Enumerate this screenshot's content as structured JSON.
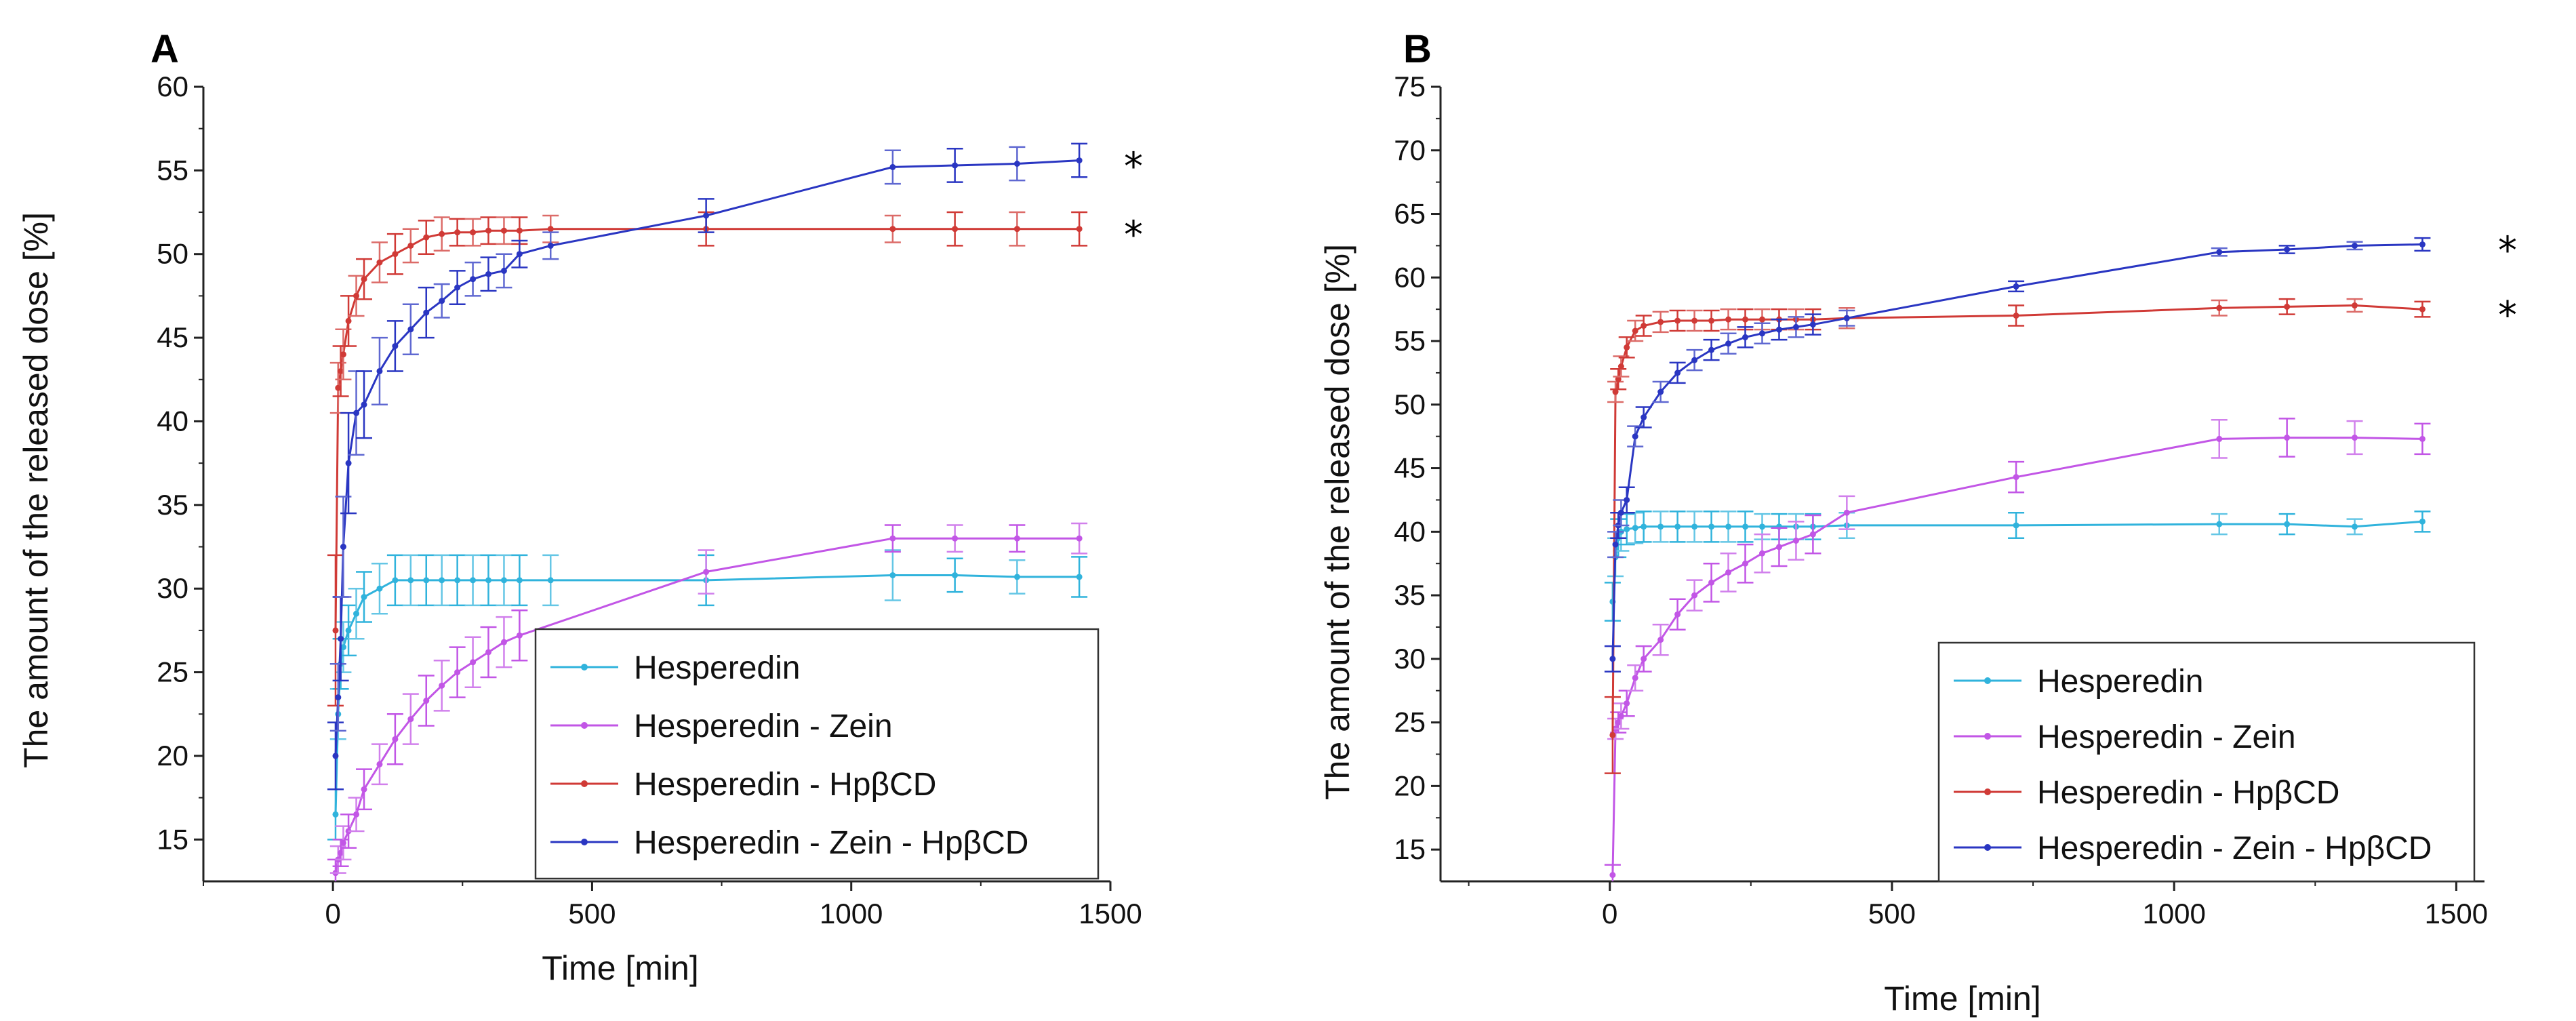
{
  "chart_data": [
    {
      "type": "line",
      "panel_label": "A",
      "xlabel": "Time [min]",
      "ylabel": "The amount of the released dose [%]",
      "xlim": [
        -250,
        1500
      ],
      "ylim": [
        12.5,
        60
      ],
      "xticks": [
        0,
        500,
        1000,
        1500
      ],
      "yticks": [
        15,
        20,
        25,
        30,
        35,
        40,
        45,
        50,
        55,
        60
      ],
      "legend_position": "bottom-right",
      "series": [
        {
          "name": "Hesperedin",
          "color": "#30b3dc",
          "x": [
            5,
            10,
            15,
            20,
            30,
            45,
            60,
            90,
            120,
            150,
            180,
            210,
            240,
            270,
            300,
            330,
            360,
            420,
            720,
            1080,
            1200,
            1320,
            1440
          ],
          "y": [
            16.5,
            22.5,
            25.5,
            26.5,
            27.5,
            28.5,
            29.5,
            30.0,
            30.5,
            30.5,
            30.5,
            30.5,
            30.5,
            30.5,
            30.5,
            30.5,
            30.5,
            30.5,
            30.5,
            30.8,
            30.8,
            30.7,
            30.7
          ],
          "err": [
            1.5,
            1.5,
            1.5,
            1.5,
            1.5,
            1.5,
            1.5,
            1.5,
            1.5,
            1.5,
            1.5,
            1.5,
            1.5,
            1.5,
            1.5,
            1.5,
            1.5,
            1.5,
            1.5,
            1.5,
            1.0,
            1.0,
            1.2
          ],
          "star": false
        },
        {
          "name": "Hesperedin - Zein",
          "color": "#c256e6",
          "x": [
            5,
            10,
            15,
            20,
            30,
            45,
            60,
            90,
            120,
            150,
            180,
            210,
            240,
            270,
            300,
            330,
            360,
            720,
            1080,
            1200,
            1320,
            1440
          ],
          "y": [
            13.0,
            13.8,
            14.2,
            14.8,
            15.5,
            16.5,
            18.0,
            19.5,
            21.0,
            22.2,
            23.3,
            24.2,
            25.0,
            25.6,
            26.2,
            26.8,
            27.2,
            31.0,
            33.0,
            33.0,
            33.0,
            33.0
          ],
          "err": [
            0.8,
            0.8,
            0.8,
            1.0,
            1.0,
            1.0,
            1.2,
            1.2,
            1.5,
            1.5,
            1.5,
            1.5,
            1.5,
            1.5,
            1.5,
            1.5,
            1.5,
            1.3,
            0.8,
            0.8,
            0.8,
            0.9
          ],
          "star": false
        },
        {
          "name": "Hesperedin - HpβCD",
          "color": "#d03a36",
          "x": [
            5,
            10,
            15,
            20,
            30,
            45,
            60,
            90,
            120,
            150,
            180,
            210,
            240,
            270,
            300,
            330,
            360,
            420,
            720,
            1080,
            1200,
            1320,
            1440
          ],
          "y": [
            27.5,
            42.0,
            43.0,
            44.0,
            46.0,
            47.5,
            48.5,
            49.5,
            50.0,
            50.5,
            51.0,
            51.2,
            51.3,
            51.3,
            51.4,
            51.4,
            51.4,
            51.5,
            51.5,
            51.5,
            51.5,
            51.5,
            51.5
          ],
          "err": [
            4.5,
            1.5,
            1.5,
            1.5,
            1.5,
            1.2,
            1.2,
            1.2,
            1.2,
            1.0,
            1.0,
            1.0,
            0.8,
            0.8,
            0.8,
            0.8,
            0.8,
            0.8,
            1.0,
            0.8,
            1.0,
            1.0,
            1.0
          ],
          "star": true
        },
        {
          "name": "Hesperedin - Zein - HpβCD",
          "color": "#2a36c2",
          "x": [
            5,
            10,
            15,
            20,
            30,
            45,
            60,
            90,
            120,
            150,
            180,
            210,
            240,
            270,
            300,
            330,
            360,
            420,
            720,
            1080,
            1200,
            1320,
            1440
          ],
          "y": [
            20.0,
            23.5,
            27.0,
            32.5,
            37.5,
            40.5,
            41.0,
            43.0,
            44.5,
            45.5,
            46.5,
            47.2,
            48.0,
            48.5,
            48.8,
            49.0,
            50.0,
            50.5,
            52.3,
            55.2,
            55.3,
            55.4,
            55.6
          ],
          "err": [
            2.0,
            2.0,
            2.5,
            3.0,
            3.0,
            2.5,
            2.0,
            2.0,
            1.5,
            1.5,
            1.5,
            1.0,
            1.0,
            1.0,
            1.0,
            1.0,
            0.8,
            0.8,
            1.0,
            1.0,
            1.0,
            1.0,
            1.0
          ],
          "star": true
        }
      ]
    },
    {
      "type": "line",
      "panel_label": "B",
      "xlabel": "Time [min]",
      "ylabel": "The amount of the released dose [%]",
      "xlim": [
        -300,
        1550
      ],
      "ylim": [
        12.5,
        75
      ],
      "xticks": [
        0,
        500,
        1000,
        1500
      ],
      "yticks": [
        15,
        20,
        25,
        30,
        35,
        40,
        45,
        50,
        55,
        60,
        65,
        70,
        75
      ],
      "legend_position": "bottom-right",
      "series": [
        {
          "name": "Hesperedin",
          "color": "#30b3dc",
          "x": [
            5,
            10,
            15,
            20,
            30,
            45,
            60,
            90,
            120,
            150,
            180,
            210,
            240,
            270,
            300,
            330,
            360,
            420,
            720,
            1080,
            1200,
            1320,
            1440
          ],
          "y": [
            34.5,
            38.0,
            39.5,
            40.0,
            40.2,
            40.3,
            40.4,
            40.4,
            40.4,
            40.4,
            40.4,
            40.4,
            40.4,
            40.4,
            40.4,
            40.4,
            40.4,
            40.5,
            40.5,
            40.6,
            40.6,
            40.4,
            40.8
          ],
          "err": [
            1.5,
            1.5,
            1.5,
            1.5,
            1.2,
            1.2,
            1.2,
            1.2,
            1.2,
            1.2,
            1.2,
            1.2,
            1.2,
            1.0,
            1.0,
            1.0,
            1.0,
            1.0,
            1.0,
            0.8,
            0.8,
            0.6,
            0.8
          ],
          "star": false
        },
        {
          "name": "Hesperedin - Zein",
          "color": "#c256e6",
          "x": [
            5,
            10,
            15,
            20,
            30,
            45,
            60,
            90,
            120,
            150,
            180,
            210,
            240,
            270,
            300,
            330,
            360,
            420,
            720,
            1080,
            1200,
            1320,
            1440
          ],
          "y": [
            13.0,
            24.5,
            25.0,
            25.5,
            26.5,
            28.5,
            30.0,
            31.5,
            33.5,
            35.0,
            36.0,
            36.8,
            37.5,
            38.3,
            38.8,
            39.3,
            39.8,
            41.5,
            44.3,
            47.3,
            47.4,
            47.4,
            47.3
          ],
          "err": [
            0.8,
            0.8,
            0.8,
            1.0,
            1.0,
            1.0,
            1.0,
            1.2,
            1.2,
            1.2,
            1.5,
            1.5,
            1.5,
            1.5,
            1.5,
            1.5,
            1.5,
            1.3,
            1.2,
            1.5,
            1.5,
            1.3,
            1.2
          ],
          "star": false
        },
        {
          "name": "Hesperedin - HpβCD",
          "color": "#d03a36",
          "x": [
            5,
            10,
            15,
            20,
            30,
            45,
            60,
            90,
            120,
            150,
            180,
            210,
            240,
            270,
            300,
            330,
            360,
            420,
            720,
            1080,
            1200,
            1320,
            1440
          ],
          "y": [
            24.0,
            51.0,
            52.0,
            53.0,
            54.5,
            55.8,
            56.2,
            56.5,
            56.6,
            56.6,
            56.6,
            56.7,
            56.7,
            56.7,
            56.7,
            56.7,
            56.7,
            56.8,
            57.0,
            57.6,
            57.7,
            57.8,
            57.5
          ],
          "err": [
            3.0,
            0.8,
            0.8,
            0.8,
            0.8,
            0.8,
            0.8,
            0.8,
            0.8,
            0.8,
            0.8,
            0.8,
            0.8,
            0.8,
            0.8,
            0.8,
            0.8,
            0.8,
            0.8,
            0.6,
            0.6,
            0.5,
            0.6
          ],
          "star": true
        },
        {
          "name": "Hesperedin - Zein - HpβCD",
          "color": "#2a36c2",
          "x": [
            5,
            10,
            15,
            20,
            30,
            45,
            60,
            90,
            120,
            150,
            180,
            210,
            240,
            270,
            300,
            330,
            360,
            420,
            720,
            1080,
            1200,
            1320,
            1440
          ],
          "y": [
            30.0,
            39.0,
            40.5,
            41.5,
            42.5,
            47.5,
            49.0,
            51.0,
            52.5,
            53.5,
            54.3,
            54.8,
            55.3,
            55.6,
            55.9,
            56.1,
            56.3,
            56.8,
            59.3,
            62.0,
            62.2,
            62.5,
            62.6
          ],
          "err": [
            1.0,
            1.0,
            1.0,
            1.0,
            1.0,
            0.8,
            0.8,
            0.8,
            0.8,
            0.8,
            0.8,
            0.8,
            0.8,
            0.8,
            0.8,
            0.8,
            0.8,
            0.6,
            0.4,
            0.3,
            0.3,
            0.3,
            0.5
          ],
          "star": true
        }
      ]
    }
  ],
  "annotations": {
    "star_symbol": "*"
  }
}
